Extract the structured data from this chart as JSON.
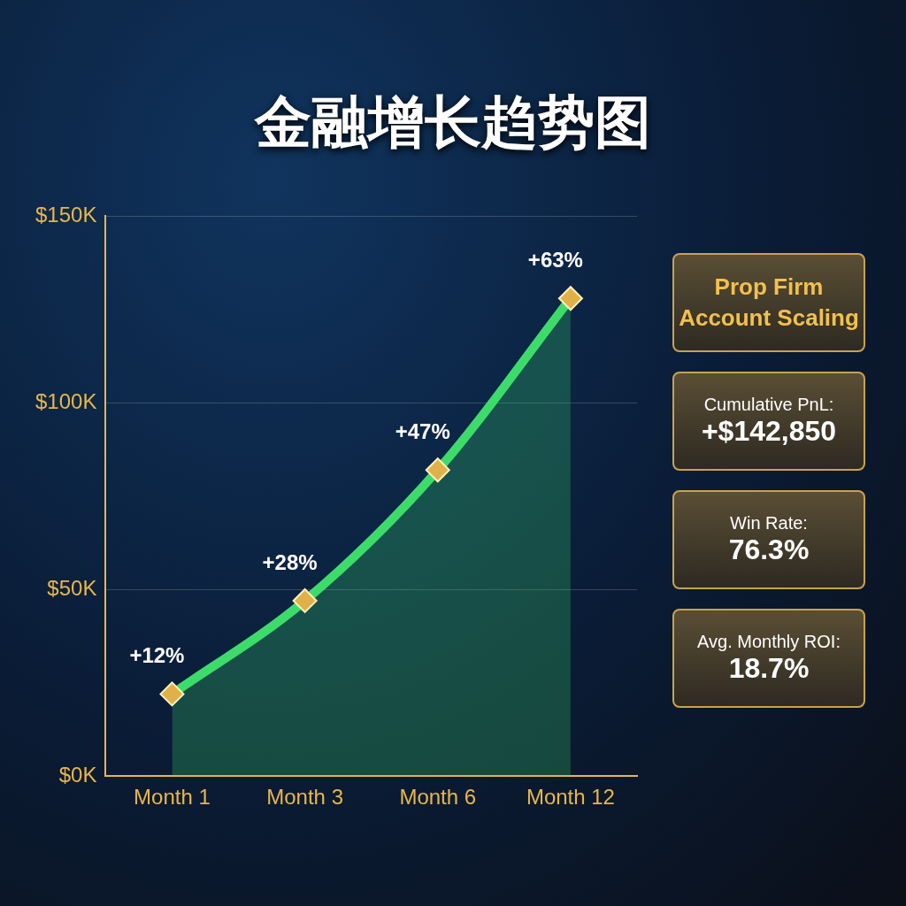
{
  "chart_data": {
    "type": "area",
    "title": "金融增长趋势图",
    "categories": [
      "Month 1",
      "Month 3",
      "Month 6",
      "Month 12"
    ],
    "values": [
      22,
      47,
      82,
      128
    ],
    "color": "#3ddc6a",
    "ylim": [
      0,
      150
    ],
    "yticks": [
      {
        "value": 0,
        "label": "$0K"
      },
      {
        "value": 50,
        "label": "$50K"
      },
      {
        "value": 100,
        "label": "$100K"
      },
      {
        "value": 150,
        "label": "$150K"
      }
    ],
    "grid": "y",
    "marker": "diamond",
    "legend": false,
    "annotations": [
      {
        "text": "+12%",
        "x": "Month 1",
        "y": 22
      },
      {
        "text": "+28%",
        "x": "Month 3",
        "y": 47
      },
      {
        "text": "+47%",
        "x": "Month 6",
        "y": 82
      },
      {
        "text": "+63%",
        "x": "Month 12",
        "y": 128
      },
      "Prop Firm Account Scaling",
      "Cumulative PnL:",
      "+$142,850",
      "Win Rate:",
      "76.3%",
      "Avg. Monthly ROI:",
      "18.7%"
    ]
  }
}
